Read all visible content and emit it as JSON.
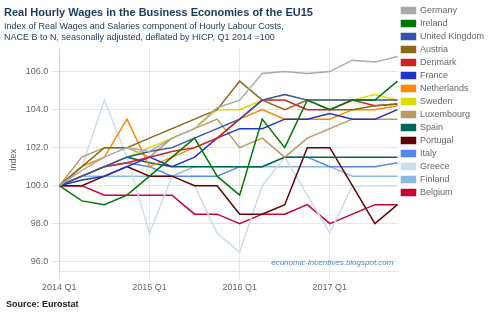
{
  "chart_data": {
    "type": "line",
    "title": "Real Hourly Wages in the Business Economies of the EU15",
    "subtitle": "Index of Real Wages and Salaries component of Hourly Labour Costs,\nNACE B to N, seasonally adjusted, deflated by HICP, Q1 2014 =100",
    "source": "Source: Eurostat",
    "annotation": "economic-incentives.blogspot.com",
    "ylabel": "Index",
    "categories": [
      "2014 Q1",
      null,
      null,
      null,
      "2015 Q1",
      null,
      null,
      null,
      "2016 Q1",
      null,
      null,
      null,
      "2017 Q1",
      null,
      null,
      null
    ],
    "ylim": [
      95.5,
      107.2
    ],
    "yticks": [
      {
        "value": 96.0,
        "label": "96.0"
      },
      {
        "value": 98.0,
        "label": "98.0"
      },
      {
        "value": 100.0,
        "label": "100.0"
      },
      {
        "value": 102.0,
        "label": "102.0"
      },
      {
        "value": 104.0,
        "label": "104.0"
      },
      {
        "value": 106.0,
        "label": "106.0"
      }
    ],
    "grid": true,
    "legend": "right",
    "series": [
      {
        "name": "Germany",
        "color": "#aaaaaa",
        "values": [
          100.0,
          100.8,
          101.5,
          102.0,
          101.8,
          102.5,
          103.0,
          104.1,
          104.5,
          105.9,
          106.0,
          105.9,
          106.0,
          106.6,
          106.5,
          106.8
        ]
      },
      {
        "name": "Ireland",
        "color": "#007700",
        "values": [
          100.0,
          99.2,
          99.0,
          99.5,
          100.5,
          101.5,
          102.5,
          100.5,
          99.5,
          103.5,
          102.0,
          104.5,
          104.0,
          104.5,
          104.5,
          105.5
        ]
      },
      {
        "name": "United Kingdom",
        "color": "#3355aa",
        "values": [
          100.0,
          100.5,
          101.0,
          101.5,
          101.8,
          102.0,
          102.5,
          103.0,
          103.5,
          104.5,
          104.8,
          104.5,
          104.5,
          104.5,
          104.5,
          104.5
        ]
      },
      {
        "name": "Austria",
        "color": "#8b6914",
        "values": [
          100.0,
          101.0,
          102.0,
          102.0,
          102.5,
          103.0,
          103.5,
          104.0,
          105.5,
          104.5,
          104.0,
          104.5,
          104.0,
          104.0,
          104.2,
          104.3
        ]
      },
      {
        "name": "Denmark",
        "color": "#cc2222",
        "values": [
          100.0,
          100.5,
          101.0,
          101.2,
          101.5,
          101.8,
          102.0,
          102.5,
          103.5,
          104.5,
          104.5,
          104.0,
          104.0,
          104.5,
          104.2,
          104.3
        ]
      },
      {
        "name": "France",
        "color": "#2233cc",
        "values": [
          100.0,
          100.3,
          100.5,
          101.0,
          101.5,
          101.0,
          101.5,
          102.5,
          103.0,
          103.0,
          103.5,
          103.5,
          103.8,
          103.5,
          103.5,
          104.0
        ]
      },
      {
        "name": "Netherlands",
        "color": "#ff8800",
        "values": [
          100.0,
          101.0,
          101.5,
          103.5,
          101.0,
          101.5,
          102.0,
          102.5,
          103.5,
          104.0,
          103.5,
          103.5,
          103.5,
          104.0,
          104.0,
          104.2
        ]
      },
      {
        "name": "Sweden",
        "color": "#dddd00",
        "values": [
          100.0,
          100.5,
          101.0,
          101.5,
          102.0,
          102.5,
          103.0,
          104.0,
          104.0,
          104.5,
          104.8,
          104.5,
          104.5,
          104.5,
          104.8,
          104.5
        ]
      },
      {
        "name": "Luxembourg",
        "color": "#bb9966",
        "values": [
          100.0,
          101.5,
          102.0,
          102.0,
          101.5,
          102.5,
          103.0,
          103.5,
          102.0,
          102.5,
          101.5,
          102.5,
          103.0,
          103.5,
          103.5,
          103.5
        ]
      },
      {
        "name": "Spain",
        "color": "#006655",
        "values": [
          100.0,
          100.5,
          101.0,
          101.5,
          101.2,
          101.0,
          101.0,
          101.0,
          101.0,
          101.0,
          101.5,
          101.5,
          101.5,
          101.5,
          101.5,
          101.5
        ]
      },
      {
        "name": "Portugal",
        "color": "#660000",
        "values": [
          100.0,
          100.0,
          100.5,
          101.0,
          100.5,
          100.5,
          100.0,
          100.0,
          98.5,
          98.5,
          99.0,
          102.0,
          102.0,
          100.0,
          98.0,
          99.0
        ]
      },
      {
        "name": "Italy",
        "color": "#5588ee",
        "values": [
          100.0,
          100.5,
          101.0,
          101.2,
          101.0,
          100.5,
          100.5,
          100.5,
          101.0,
          101.0,
          101.5,
          101.5,
          101.0,
          101.0,
          101.0,
          101.2
        ]
      },
      {
        "name": "Greece",
        "color": "#ccdde8",
        "values": [
          100.0,
          101.0,
          104.5,
          101.5,
          97.5,
          100.5,
          100.0,
          97.5,
          96.5,
          100.0,
          101.5,
          99.5,
          97.5,
          100.0,
          100.0,
          100.0
        ]
      },
      {
        "name": "Finland",
        "color": "#88bbdd",
        "values": [
          100.0,
          100.5,
          100.5,
          100.5,
          100.5,
          100.5,
          101.0,
          101.0,
          101.0,
          101.0,
          101.0,
          101.0,
          101.0,
          100.5,
          100.5,
          100.5
        ]
      },
      {
        "name": "Belgium",
        "color": "#cc0033",
        "values": [
          100.0,
          100.0,
          99.5,
          99.5,
          99.5,
          99.5,
          98.5,
          98.5,
          98.0,
          98.5,
          98.5,
          99.0,
          98.0,
          98.5,
          99.0,
          99.0
        ]
      }
    ]
  }
}
